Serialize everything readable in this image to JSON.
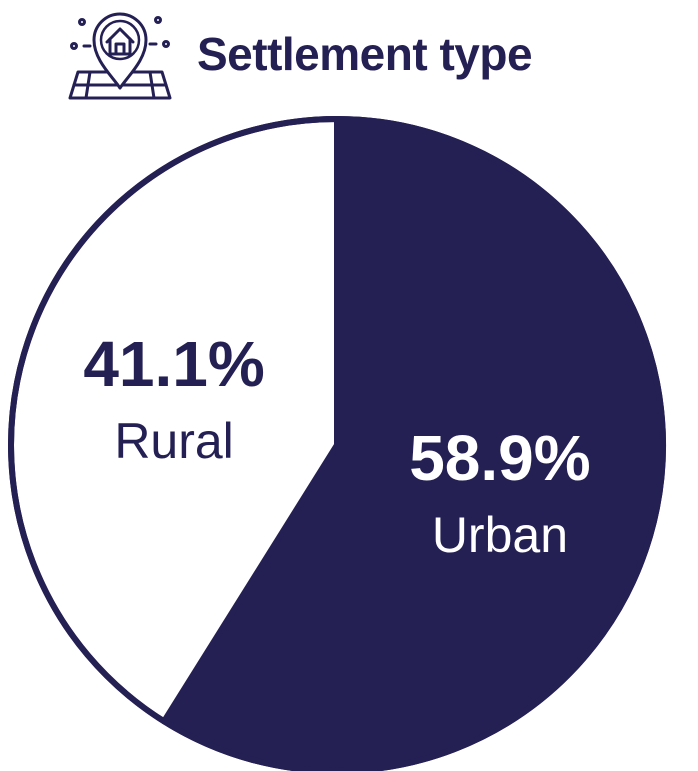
{
  "colors": {
    "navy": "#242054",
    "white": "#ffffff"
  },
  "header": {
    "title": "Settlement type",
    "icon": "house-location-pin-icon"
  },
  "chart_data": {
    "type": "pie",
    "title": "Settlement type",
    "slices": [
      {
        "label": "Urban",
        "value": 58.9,
        "value_label": "58.9%",
        "color": "#242054",
        "text_color": "#ffffff"
      },
      {
        "label": "Rural",
        "value": 41.1,
        "value_label": "41.1%",
        "color": "#ffffff",
        "text_color": "#242054"
      }
    ],
    "start_angle": "12 o'clock",
    "direction": "clockwise",
    "legend": "none"
  }
}
